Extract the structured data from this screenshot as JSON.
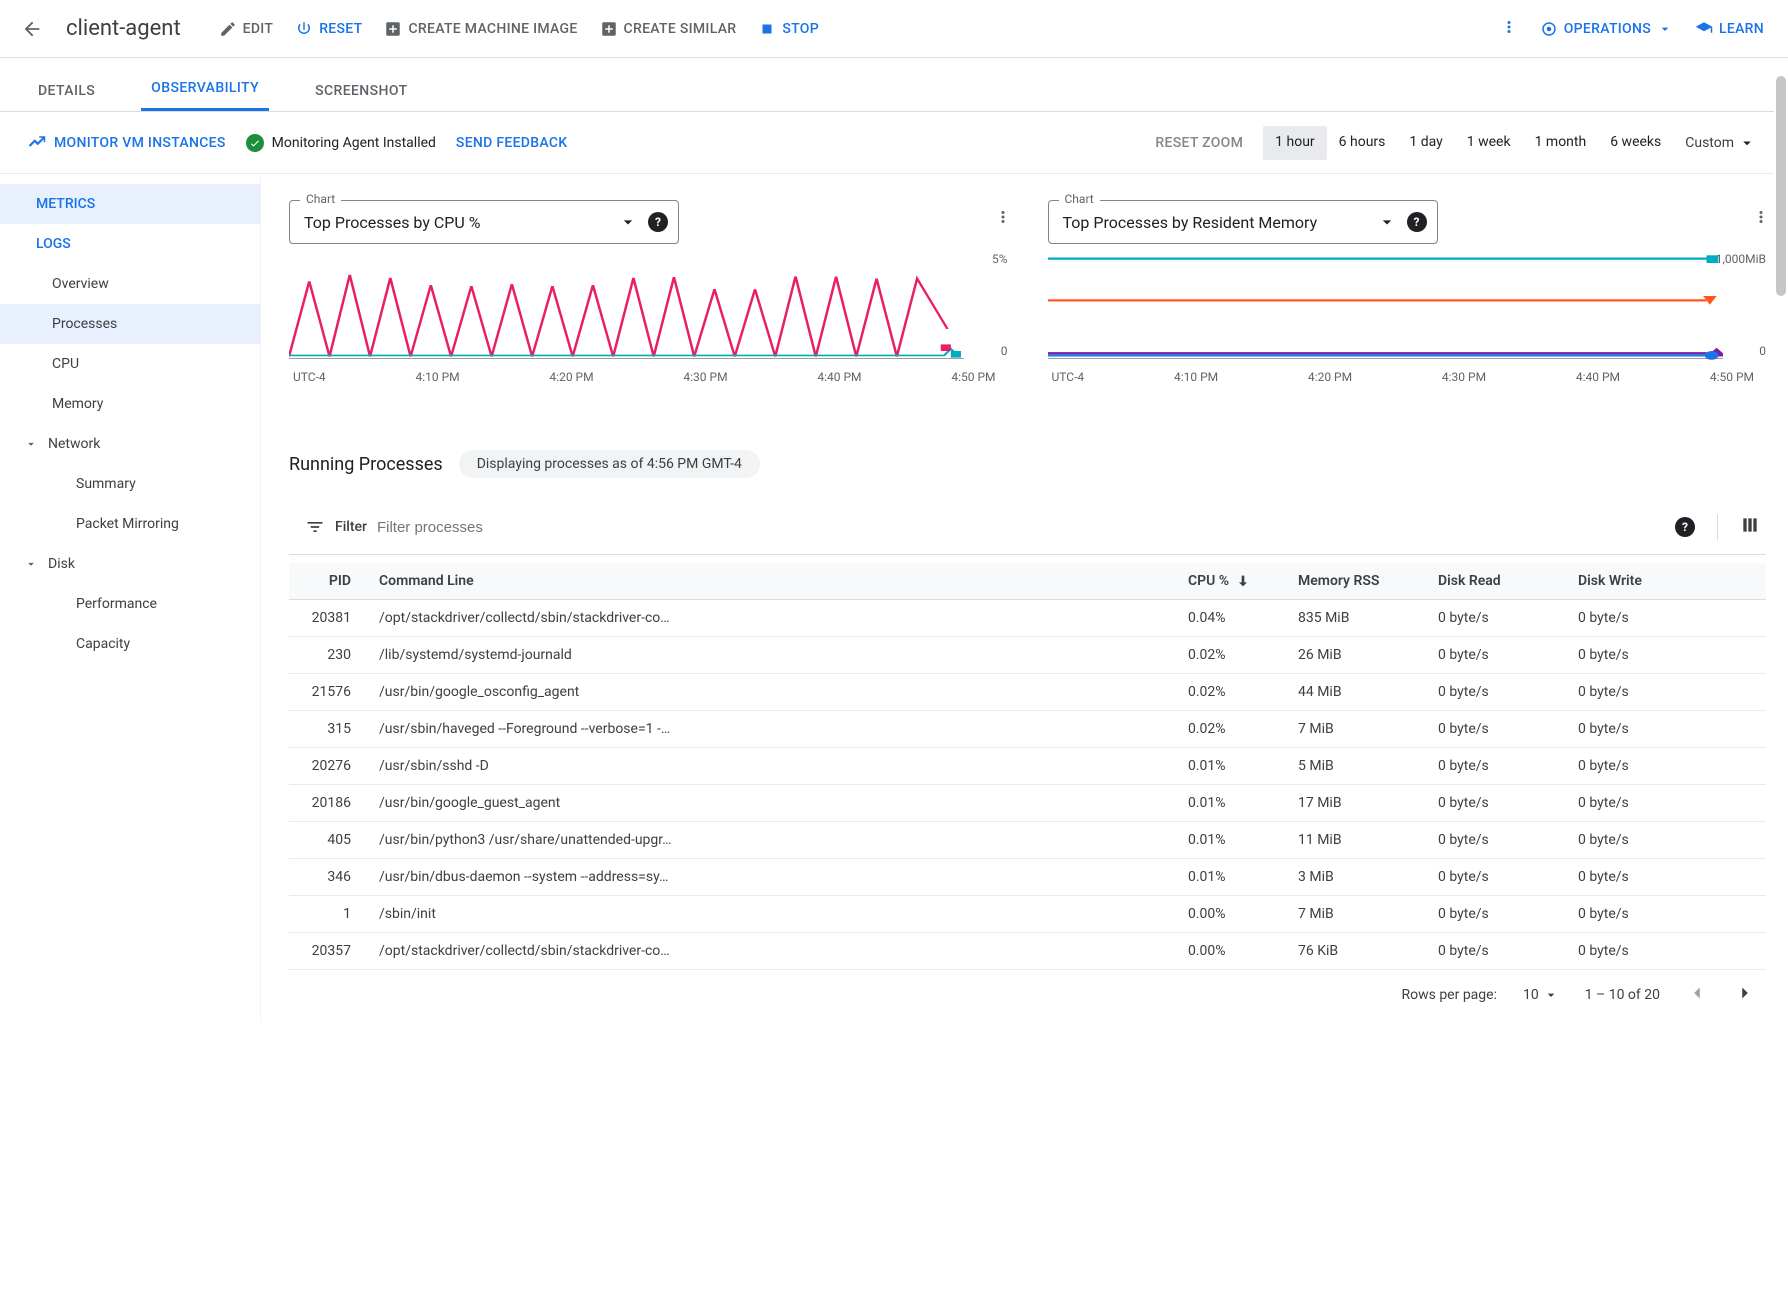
{
  "header": {
    "title": "client-agent",
    "actions": {
      "edit": "EDIT",
      "reset": "RESET",
      "create_image": "CREATE MACHINE IMAGE",
      "create_similar": "CREATE SIMILAR",
      "stop": "STOP"
    },
    "operations_label": "OPERATIONS",
    "learn_label": "LEARN"
  },
  "tabs": {
    "details": "DETAILS",
    "observability": "OBSERVABILITY",
    "screenshot": "SCREENSHOT",
    "active": "observability"
  },
  "secondary": {
    "monitor_instances": "MONITOR VM INSTANCES",
    "agent_status": "Monitoring Agent Installed",
    "send_feedback": "SEND FEEDBACK",
    "reset_zoom": "RESET ZOOM",
    "range_buttons": [
      "1 hour",
      "6 hours",
      "1 day",
      "1 week",
      "1 month",
      "6 weeks",
      "Custom"
    ],
    "range_active_index": 0
  },
  "sidebar": {
    "metrics": "METRICS",
    "logs": "LOGS",
    "overview": "Overview",
    "processes": "Processes",
    "cpu": "CPU",
    "memory": "Memory",
    "network": "Network",
    "summary": "Summary",
    "packet_mirroring": "Packet Mirroring",
    "disk": "Disk",
    "performance": "Performance",
    "capacity": "Capacity",
    "selected": "processes"
  },
  "charts": {
    "select_label": "Chart",
    "left": {
      "value": "Top Processes by CPU %",
      "ymax": "5%",
      "ymin": "0",
      "xlabels": [
        "UTC-4",
        "4:10 PM",
        "4:20 PM",
        "4:30 PM",
        "4:40 PM",
        "4:50 PM"
      ],
      "series": [
        {
          "color": "#e91e63",
          "w": 1.5,
          "points": [
            0,
            40,
            6,
            40,
            12,
            40,
            18,
            40,
            24,
            40,
            30,
            40,
            36,
            40,
            42,
            40,
            48,
            40,
            54,
            40,
            60,
            40,
            66,
            40,
            72,
            40,
            78,
            40,
            84,
            40,
            90,
            40,
            96,
            40,
            100,
            60
          ]
        },
        {
          "color": "#00acc1",
          "w": 1.5,
          "flat": 97
        }
      ]
    },
    "right": {
      "value": "Top Processes by Resident Memory",
      "ymax": "1,000MiB",
      "ymin": "0",
      "xlabels": [
        "UTC-4",
        "4:10 PM",
        "4:20 PM",
        "4:30 PM",
        "4:40 PM",
        "4:50 PM"
      ],
      "series": [
        {
          "color": "#00acc1",
          "y": 6
        },
        {
          "color": "#ff5722",
          "y": 44
        },
        {
          "color": "#7b1fa2",
          "y": 92
        },
        {
          "color": "#1a73e8",
          "y": 94
        }
      ]
    }
  },
  "running": {
    "title": "Running Processes",
    "badge": "Displaying processes as of 4:56 PM GMT-4"
  },
  "filter": {
    "label": "Filter",
    "placeholder": "Filter processes"
  },
  "table": {
    "columns": {
      "pid": "PID",
      "cmd": "Command Line",
      "cpu": "CPU %",
      "mem": "Memory RSS",
      "dr": "Disk Read",
      "dw": "Disk Write"
    },
    "rows": [
      {
        "pid": "20381",
        "cmd": "/opt/stackdriver/collectd/sbin/stackdriver-co…",
        "cpu": "0.04%",
        "mem": "835 MiB",
        "dr": "0 byte/s",
        "dw": "0 byte/s"
      },
      {
        "pid": "230",
        "cmd": "/lib/systemd/systemd-journald",
        "cpu": "0.02%",
        "mem": "26 MiB",
        "dr": "0 byte/s",
        "dw": "0 byte/s"
      },
      {
        "pid": "21576",
        "cmd": "/usr/bin/google_osconfig_agent",
        "cpu": "0.02%",
        "mem": "44 MiB",
        "dr": "0 byte/s",
        "dw": "0 byte/s"
      },
      {
        "pid": "315",
        "cmd": "/usr/sbin/haveged --Foreground --verbose=1 -…",
        "cpu": "0.02%",
        "mem": "7 MiB",
        "dr": "0 byte/s",
        "dw": "0 byte/s"
      },
      {
        "pid": "20276",
        "cmd": "/usr/sbin/sshd -D",
        "cpu": "0.01%",
        "mem": "5 MiB",
        "dr": "0 byte/s",
        "dw": "0 byte/s"
      },
      {
        "pid": "20186",
        "cmd": "/usr/bin/google_guest_agent",
        "cpu": "0.01%",
        "mem": "17 MiB",
        "dr": "0 byte/s",
        "dw": "0 byte/s"
      },
      {
        "pid": "405",
        "cmd": "/usr/bin/python3 /usr/share/unattended-upgr…",
        "cpu": "0.01%",
        "mem": "11 MiB",
        "dr": "0 byte/s",
        "dw": "0 byte/s"
      },
      {
        "pid": "346",
        "cmd": "/usr/bin/dbus-daemon --system --address=sy…",
        "cpu": "0.01%",
        "mem": "3 MiB",
        "dr": "0 byte/s",
        "dw": "0 byte/s"
      },
      {
        "pid": "1",
        "cmd": "/sbin/init",
        "cpu": "0.00%",
        "mem": "7 MiB",
        "dr": "0 byte/s",
        "dw": "0 byte/s"
      },
      {
        "pid": "20357",
        "cmd": "/opt/stackdriver/collectd/sbin/stackdriver-co…",
        "cpu": "0.00%",
        "mem": "76 KiB",
        "dr": "0 byte/s",
        "dw": "0 byte/s"
      }
    ],
    "footer": {
      "rows_per_page_label": "Rows per page:",
      "rows_per_page_value": "10",
      "range": "1 – 10 of 20"
    }
  },
  "colors": {
    "primary_blue": "#1a73e8",
    "text_gray": "#5f6368",
    "divider": "#dadce0",
    "active_bg": "#e8eaed",
    "selected_bg": "#e8f0fe",
    "ok_green": "#1e8e3e"
  }
}
